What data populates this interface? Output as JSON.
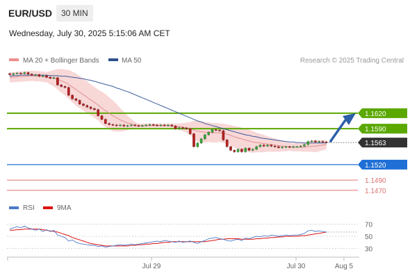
{
  "header": {
    "pair": "EUR/USD",
    "timeframe": "30 MIN"
  },
  "datetime": "Wednesday, July 30, 2025 5:15:06 AM CET",
  "legend": {
    "ma20": "MA 20 + Bollinger Bands",
    "ma50": "MA 50",
    "copyright": "Research © 2025 Trading Central"
  },
  "rsi_legend": {
    "rsi": "RSI",
    "ma9": "9MA"
  },
  "colors": {
    "resistance": "#5aa800",
    "current_label": "#333333",
    "support_blue": "#1f6fd6",
    "support_red": "#e07070",
    "candle": "#b22222",
    "ma50": "#3a5a9a",
    "ma20": "#e09090",
    "band": "#f6c9c9",
    "rsi": "#4a78c8",
    "rsi_ma": "#dd1111",
    "arrow": "#2d5fa8"
  },
  "chart_data": [
    {
      "type": "candlestick",
      "x_axis": [
        "Jul 29",
        "Jul 30",
        "Aug 5"
      ],
      "ylim": [
        1.1455,
        1.1705
      ],
      "levels": [
        {
          "value": 1.162,
          "label": "1.1620",
          "kind": "resistance"
        },
        {
          "value": 1.159,
          "label": "1.1590",
          "kind": "resistance"
        },
        {
          "value": 1.1563,
          "label": "1.1563",
          "kind": "current"
        },
        {
          "value": 1.152,
          "label": "1.1520",
          "kind": "support"
        },
        {
          "value": 1.149,
          "label": "1.1490",
          "kind": "support-minor"
        },
        {
          "value": 1.147,
          "label": "1.1470",
          "kind": "support-minor"
        }
      ],
      "close": [
        1.1695,
        1.1697,
        1.1698,
        1.1697,
        1.1699,
        1.1696,
        1.1694,
        1.1695,
        1.1692,
        1.1693,
        1.169,
        1.1688,
        1.1689,
        1.1675,
        1.1672,
        1.167,
        1.1655,
        1.1648,
        1.1645,
        1.1638,
        1.1635,
        1.1632,
        1.1629,
        1.1627,
        1.1615,
        1.1608,
        1.16,
        1.1598,
        1.1597,
        1.1596,
        1.1597,
        1.1595,
        1.1596,
        1.1597,
        1.1596,
        1.1595,
        1.1596,
        1.1597,
        1.1598,
        1.1597,
        1.1596,
        1.1597,
        1.1596,
        1.1597,
        1.1595,
        1.159,
        1.1592,
        1.1591,
        1.159,
        1.158,
        1.1555,
        1.1562,
        1.157,
        1.1578,
        1.1583,
        1.1588,
        1.1587,
        1.1586,
        1.1568,
        1.1555,
        1.1548,
        1.1545,
        1.155,
        1.1545,
        1.1552,
        1.1548,
        1.155,
        1.1555,
        1.1558,
        1.1556,
        1.1558,
        1.1556,
        1.1555,
        1.1553,
        1.1554,
        1.1555,
        1.1554,
        1.1555,
        1.1555,
        1.1556,
        1.1559,
        1.1565,
        1.1566,
        1.1564,
        1.1565,
        1.1564,
        1.1563
      ],
      "ma20": [
        1.169,
        1.169,
        1.1691,
        1.1691,
        1.1692,
        1.1692,
        1.1693,
        1.1692,
        1.1692,
        1.1691,
        1.169,
        1.1689,
        1.1688,
        1.1686,
        1.1683,
        1.168,
        1.1676,
        1.1671,
        1.1666,
        1.1661,
        1.1656,
        1.1651,
        1.1646,
        1.1641,
        1.1636,
        1.163,
        1.1625,
        1.162,
        1.1615,
        1.1611,
        1.1607,
        1.1604,
        1.1601,
        1.1599,
        1.1597,
        1.1596,
        1.1596,
        1.1596,
        1.1596,
        1.1596,
        1.1596,
        1.1596,
        1.1596,
        1.1596,
        1.1596,
        1.1595,
        1.1594,
        1.1593,
        1.1592,
        1.159,
        1.1587,
        1.1585,
        1.1584,
        1.1583,
        1.1583,
        1.1582,
        1.1582,
        1.1582,
        1.1581,
        1.1579,
        1.1577,
        1.1574,
        1.1572,
        1.157,
        1.1568,
        1.1566,
        1.1564,
        1.1563,
        1.1562,
        1.1561,
        1.156,
        1.1559,
        1.1558,
        1.1557,
        1.1556,
        1.1555,
        1.1555,
        1.1554,
        1.1554,
        1.1554,
        1.1554,
        1.1555,
        1.1556,
        1.1556,
        1.1557,
        1.1558,
        1.1559
      ],
      "ma50": [
        1.1692,
        1.1693,
        1.1693,
        1.1694,
        1.1694,
        1.1694,
        1.1694,
        1.1694,
        1.1694,
        1.1694,
        1.1694,
        1.1693,
        1.1693,
        1.1693,
        1.1692,
        1.1692,
        1.1691,
        1.169,
        1.1689,
        1.1688,
        1.1687,
        1.1685,
        1.1684,
        1.1682,
        1.168,
        1.1678,
        1.1676,
        1.1674,
        1.1672,
        1.1669,
        1.1667,
        1.1664,
        1.1662,
        1.1659,
        1.1656,
        1.1653,
        1.165,
        1.1647,
        1.1644,
        1.1641,
        1.1638,
        1.1635,
        1.1632,
        1.1629,
        1.1626,
        1.1623,
        1.162,
        1.1617,
        1.1614,
        1.1611,
        1.1608,
        1.1605,
        1.1603,
        1.16,
        1.1598,
        1.1596,
        1.1594,
        1.1592,
        1.159,
        1.1588,
        1.1586,
        1.1584,
        1.1582,
        1.158,
        1.1578,
        1.1577,
        1.1575,
        1.1574,
        1.1572,
        1.1571,
        1.157,
        1.1569,
        1.1568,
        1.1567,
        1.1566,
        1.1565,
        1.1564,
        1.1564,
        1.1563,
        1.1563,
        1.1562,
        1.1562,
        1.1562,
        1.1562,
        1.1562,
        1.1562,
        1.1562
      ],
      "bb_upper": [
        1.17,
        1.17,
        1.1701,
        1.1701,
        1.1702,
        1.1702,
        1.1703,
        1.1702,
        1.1702,
        1.1701,
        1.17,
        1.1702,
        1.1704,
        1.1706,
        1.1706,
        1.1705,
        1.1704,
        1.1701,
        1.1697,
        1.1692,
        1.1687,
        1.1682,
        1.1676,
        1.1671,
        1.1666,
        1.1662,
        1.1657,
        1.1651,
        1.1645,
        1.1638,
        1.163,
        1.1623,
        1.1615,
        1.1609,
        1.1603,
        1.16,
        1.16,
        1.16,
        1.16,
        1.16,
        1.16,
        1.16,
        1.16,
        1.16,
        1.16,
        1.16,
        1.16,
        1.1601,
        1.1602,
        1.1603,
        1.1605,
        1.1605,
        1.1604,
        1.1603,
        1.1602,
        1.1601,
        1.1601,
        1.16,
        1.16,
        1.1598,
        1.1597,
        1.1595,
        1.1594,
        1.1592,
        1.159,
        1.1588,
        1.1585,
        1.1582,
        1.158,
        1.1578,
        1.1575,
        1.1573,
        1.1571,
        1.1569,
        1.1566,
        1.1564,
        1.1563,
        1.1562,
        1.1562,
        1.1562,
        1.1563,
        1.1565,
        1.1567,
        1.1568,
        1.1568,
        1.1568,
        1.1568
      ],
      "bb_lower": [
        1.168,
        1.168,
        1.1681,
        1.1681,
        1.1682,
        1.1682,
        1.1683,
        1.1682,
        1.1682,
        1.1681,
        1.168,
        1.1676,
        1.1672,
        1.1666,
        1.166,
        1.1655,
        1.1648,
        1.1641,
        1.1635,
        1.163,
        1.1625,
        1.162,
        1.1616,
        1.1611,
        1.1606,
        1.1598,
        1.1593,
        1.1589,
        1.1585,
        1.1584,
        1.1584,
        1.1585,
        1.1587,
        1.1589,
        1.1591,
        1.1592,
        1.1592,
        1.1592,
        1.1592,
        1.1592,
        1.1592,
        1.1592,
        1.1592,
        1.1592,
        1.1592,
        1.159,
        1.1588,
        1.1585,
        1.1582,
        1.1577,
        1.1569,
        1.1565,
        1.1564,
        1.1563,
        1.1564,
        1.1563,
        1.1563,
        1.1564,
        1.1562,
        1.156,
        1.1557,
        1.1553,
        1.155,
        1.1548,
        1.1546,
        1.1544,
        1.1543,
        1.1544,
        1.1544,
        1.1544,
        1.1545,
        1.1545,
        1.1545,
        1.1545,
        1.1546,
        1.1546,
        1.1547,
        1.1546,
        1.1546,
        1.1546,
        1.1545,
        1.1545,
        1.1545,
        1.1544,
        1.1546,
        1.1548,
        1.155
      ],
      "projection": {
        "from": 1.1563,
        "to": 1.1612
      }
    },
    {
      "type": "line",
      "name": "RSI",
      "ylim": [
        20,
        80
      ],
      "yticks": [
        70,
        50,
        30
      ],
      "rsi": [
        62,
        64,
        66,
        64,
        67,
        64,
        62,
        60,
        62,
        58,
        61,
        58,
        60,
        52,
        50,
        48,
        42,
        44,
        40,
        38,
        37,
        36,
        35,
        35,
        33,
        34,
        32,
        33,
        34,
        35,
        36,
        35,
        36,
        37,
        36,
        37,
        38,
        39,
        40,
        41,
        42,
        41,
        43,
        42,
        41,
        40,
        42,
        40,
        41,
        42,
        40,
        38,
        41,
        43,
        46,
        47,
        48,
        46,
        45,
        43,
        42,
        44,
        45,
        43,
        47,
        46,
        48,
        50,
        49,
        51,
        50,
        52,
        51,
        50,
        51,
        52,
        51,
        52,
        52,
        53,
        55,
        59,
        60,
        58,
        59,
        58,
        57
      ],
      "ma9": [
        60,
        60,
        61,
        61,
        62,
        62,
        62,
        62,
        62,
        61,
        60,
        59,
        58,
        57,
        55,
        53,
        51,
        48,
        46,
        44,
        42,
        40,
        38,
        37,
        36,
        35,
        34,
        34,
        34,
        34,
        34,
        34,
        34,
        35,
        35,
        36,
        36,
        37,
        37,
        38,
        38,
        39,
        40,
        40,
        41,
        41,
        41,
        41,
        41,
        41,
        41,
        41,
        41,
        41,
        42,
        43,
        44,
        45,
        45,
        46,
        46,
        46,
        46,
        45,
        45,
        45,
        45,
        46,
        46,
        47,
        47,
        48,
        48,
        49,
        49,
        50,
        50,
        50,
        50,
        51,
        51,
        52,
        53,
        54,
        55,
        56,
        57
      ]
    }
  ]
}
